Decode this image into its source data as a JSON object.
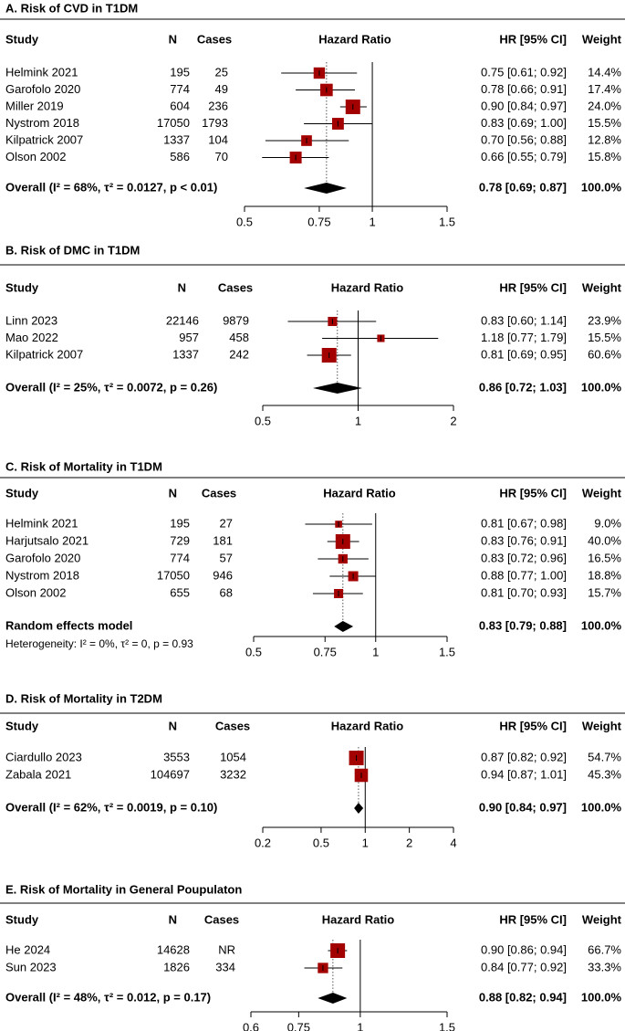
{
  "chart_data": [
    {
      "type": "forest",
      "title": "A. Risk of CVD in T1DM",
      "headers": {
        "study": "Study",
        "n": "N",
        "cases": "Cases",
        "effect": "Hazard Ratio",
        "ci": "HR [95% CI]",
        "weight": "Weight"
      },
      "studies": [
        "Helmink 2021",
        "Garofolo 2020",
        "Miller 2019",
        "Nystrom 2018",
        "Kilpatrick 2007",
        "Olson 2002"
      ],
      "n": [
        195,
        774,
        604,
        17050,
        1337,
        586
      ],
      "cases": [
        25,
        49,
        236,
        1793,
        104,
        70
      ],
      "values": [
        0.75,
        0.78,
        0.9,
        0.83,
        0.7,
        0.66
      ],
      "lower": [
        0.61,
        0.66,
        0.84,
        0.69,
        0.56,
        0.55
      ],
      "upper": [
        0.92,
        0.91,
        0.97,
        1.0,
        0.88,
        0.79
      ],
      "value_labels": [
        "0.75 [0.61; 0.92]",
        "0.78 [0.66; 0.91]",
        "0.90 [0.84; 0.97]",
        "0.83 [0.69; 1.00]",
        "0.70 [0.56; 0.88]",
        "0.66 [0.55; 0.79]"
      ],
      "weights": [
        14.4,
        17.4,
        24.0,
        15.5,
        12.8,
        15.8
      ],
      "weight_labels": [
        "14.4%",
        "17.4%",
        "24.0%",
        "15.5%",
        "12.8%",
        "15.8%"
      ],
      "overall": {
        "label": "Overall (I² = 68%, τ² = 0.0127, p < 0.01)",
        "value": 0.78,
        "lower": 0.69,
        "upper": 0.87,
        "value_label": "0.78 [0.69; 0.87]",
        "weight": 100.0,
        "weight_label": "100.0%"
      },
      "xlim": [
        0.5,
        1.5
      ],
      "xticks": [
        0.5,
        0.75,
        1,
        1.5
      ],
      "log_x": true,
      "reference_line": 1,
      "color": "#a30000"
    },
    {
      "type": "forest",
      "title": "B. Risk of DMC in T1DM",
      "headers": {
        "study": "Study",
        "n": "N",
        "cases": "Cases",
        "effect": "Hazard Ratio",
        "ci": "HR [95% CI]",
        "weight": "Weight"
      },
      "studies": [
        "Linn 2023",
        "Mao 2022",
        "Kilpatrick 2007"
      ],
      "n": [
        22146,
        957,
        1337
      ],
      "cases": [
        9879,
        458,
        242
      ],
      "values": [
        0.83,
        1.18,
        0.81
      ],
      "lower": [
        0.6,
        0.77,
        0.69
      ],
      "upper": [
        1.14,
        1.79,
        0.95
      ],
      "value_labels": [
        "0.83 [0.60; 1.14]",
        "1.18 [0.77; 1.79]",
        "0.81 [0.69; 0.95]"
      ],
      "weights": [
        23.9,
        15.5,
        60.6
      ],
      "weight_labels": [
        "23.9%",
        "15.5%",
        "60.6%"
      ],
      "overall": {
        "label": "Overall (I² = 25%, τ² = 0.0072, p = 0.26)",
        "value": 0.86,
        "lower": 0.72,
        "upper": 1.03,
        "value_label": "0.86 [0.72; 1.03]",
        "weight": 100.0,
        "weight_label": "100.0%"
      },
      "xlim": [
        0.5,
        2
      ],
      "xticks": [
        0.5,
        1,
        2
      ],
      "log_x": true,
      "reference_line": 1,
      "color": "#a30000"
    },
    {
      "type": "forest",
      "title": "C. Risk of Mortality in T1DM",
      "headers": {
        "study": "Study",
        "n": "N",
        "cases": "Cases",
        "effect": "Hazard Ratio",
        "ci": "HR [95%  CI]",
        "weight": "Weight"
      },
      "studies": [
        "Helmink 2021",
        "Harjutsalo 2021",
        "Garofolo 2020",
        "Nystrom 2018",
        "Olson 2002"
      ],
      "n": [
        195,
        729,
        774,
        17050,
        655
      ],
      "cases": [
        27,
        181,
        57,
        946,
        68
      ],
      "values": [
        0.81,
        0.83,
        0.83,
        0.88,
        0.81
      ],
      "lower": [
        0.67,
        0.76,
        0.72,
        0.77,
        0.7
      ],
      "upper": [
        0.98,
        0.91,
        0.96,
        1.0,
        0.93
      ],
      "value_labels": [
        "0.81 [0.67; 0.98]",
        "0.83 [0.76; 0.91]",
        "0.83 [0.72; 0.96]",
        "0.88 [0.77; 1.00]",
        "0.81 [0.70; 0.93]"
      ],
      "weights": [
        9.0,
        40.0,
        16.5,
        18.8,
        15.7
      ],
      "weight_labels": [
        "9.0%",
        "40.0%",
        "16.5%",
        "18.8%",
        "15.7%"
      ],
      "overall": {
        "label": "Random effects model",
        "value": 0.83,
        "lower": 0.79,
        "upper": 0.88,
        "value_label": "0.83 [0.79; 0.88]",
        "weight": 100.0,
        "weight_label": "100.0%"
      },
      "heterogeneity": "Heterogeneity: I² = 0%, τ² = 0, p = 0.93",
      "xlim": [
        0.5,
        1.5
      ],
      "xticks": [
        0.5,
        0.75,
        1,
        1.5
      ],
      "log_x": true,
      "reference_line": 1,
      "color": "#a30000"
    },
    {
      "type": "forest",
      "title": "D. Risk of Mortality in T2DM",
      "headers": {
        "study": "Study",
        "n": "N",
        "cases": "Cases",
        "effect": "Hazard Ratio",
        "ci": "HR [95% CI]",
        "weight": "Weight"
      },
      "studies": [
        "Ciardullo 2023",
        "Zabala 2021"
      ],
      "n": [
        3553,
        104697
      ],
      "cases": [
        1054,
        3232
      ],
      "values": [
        0.87,
        0.94
      ],
      "lower": [
        0.82,
        0.87
      ],
      "upper": [
        0.92,
        1.01
      ],
      "value_labels": [
        "0.87 [0.82; 0.92]",
        "0.94 [0.87; 1.01]"
      ],
      "weights": [
        54.7,
        45.3
      ],
      "weight_labels": [
        "54.7%",
        "45.3%"
      ],
      "overall": {
        "label": "Overall (I² = 62%, τ² = 0.0019, p = 0.10)",
        "value": 0.9,
        "lower": 0.84,
        "upper": 0.97,
        "value_label": "0.90 [0.84; 0.97]",
        "weight": 100.0,
        "weight_label": "100.0%"
      },
      "xlim": [
        0.2,
        4
      ],
      "xticks": [
        0.2,
        0.5,
        1,
        2,
        4
      ],
      "log_x": true,
      "reference_line": 1,
      "color": "#a30000"
    },
    {
      "type": "forest",
      "title": "E. Risk of Mortality in General Poupulaton",
      "headers": {
        "study": "Study",
        "n": "N",
        "cases": "Cases",
        "effect": "Hazard Ratio",
        "ci": "HR [95% CI]",
        "weight": "Weight"
      },
      "studies": [
        "He 2024",
        "Sun 2023"
      ],
      "n": [
        14628,
        1826
      ],
      "cases": [
        "NR",
        334
      ],
      "values": [
        0.9,
        0.84
      ],
      "lower": [
        0.86,
        0.77
      ],
      "upper": [
        0.94,
        0.92
      ],
      "value_labels": [
        "0.90 [0.86; 0.94]",
        "0.84 [0.77; 0.92]"
      ],
      "weights": [
        66.7,
        33.3
      ],
      "weight_labels": [
        "66.7%",
        "33.3%"
      ],
      "overall": {
        "label": "Overall (I² = 48%, τ² = 0.012, p = 0.17)",
        "value": 0.88,
        "lower": 0.82,
        "upper": 0.94,
        "value_label": "0.88 [0.82; 0.94]",
        "weight": 100.0,
        "weight_label": "100.0%"
      },
      "xlim": [
        0.6,
        1.5
      ],
      "xticks": [
        0.6,
        0.75,
        1,
        1.5
      ],
      "log_x": true,
      "reference_line": 1,
      "color": "#a30000"
    }
  ]
}
